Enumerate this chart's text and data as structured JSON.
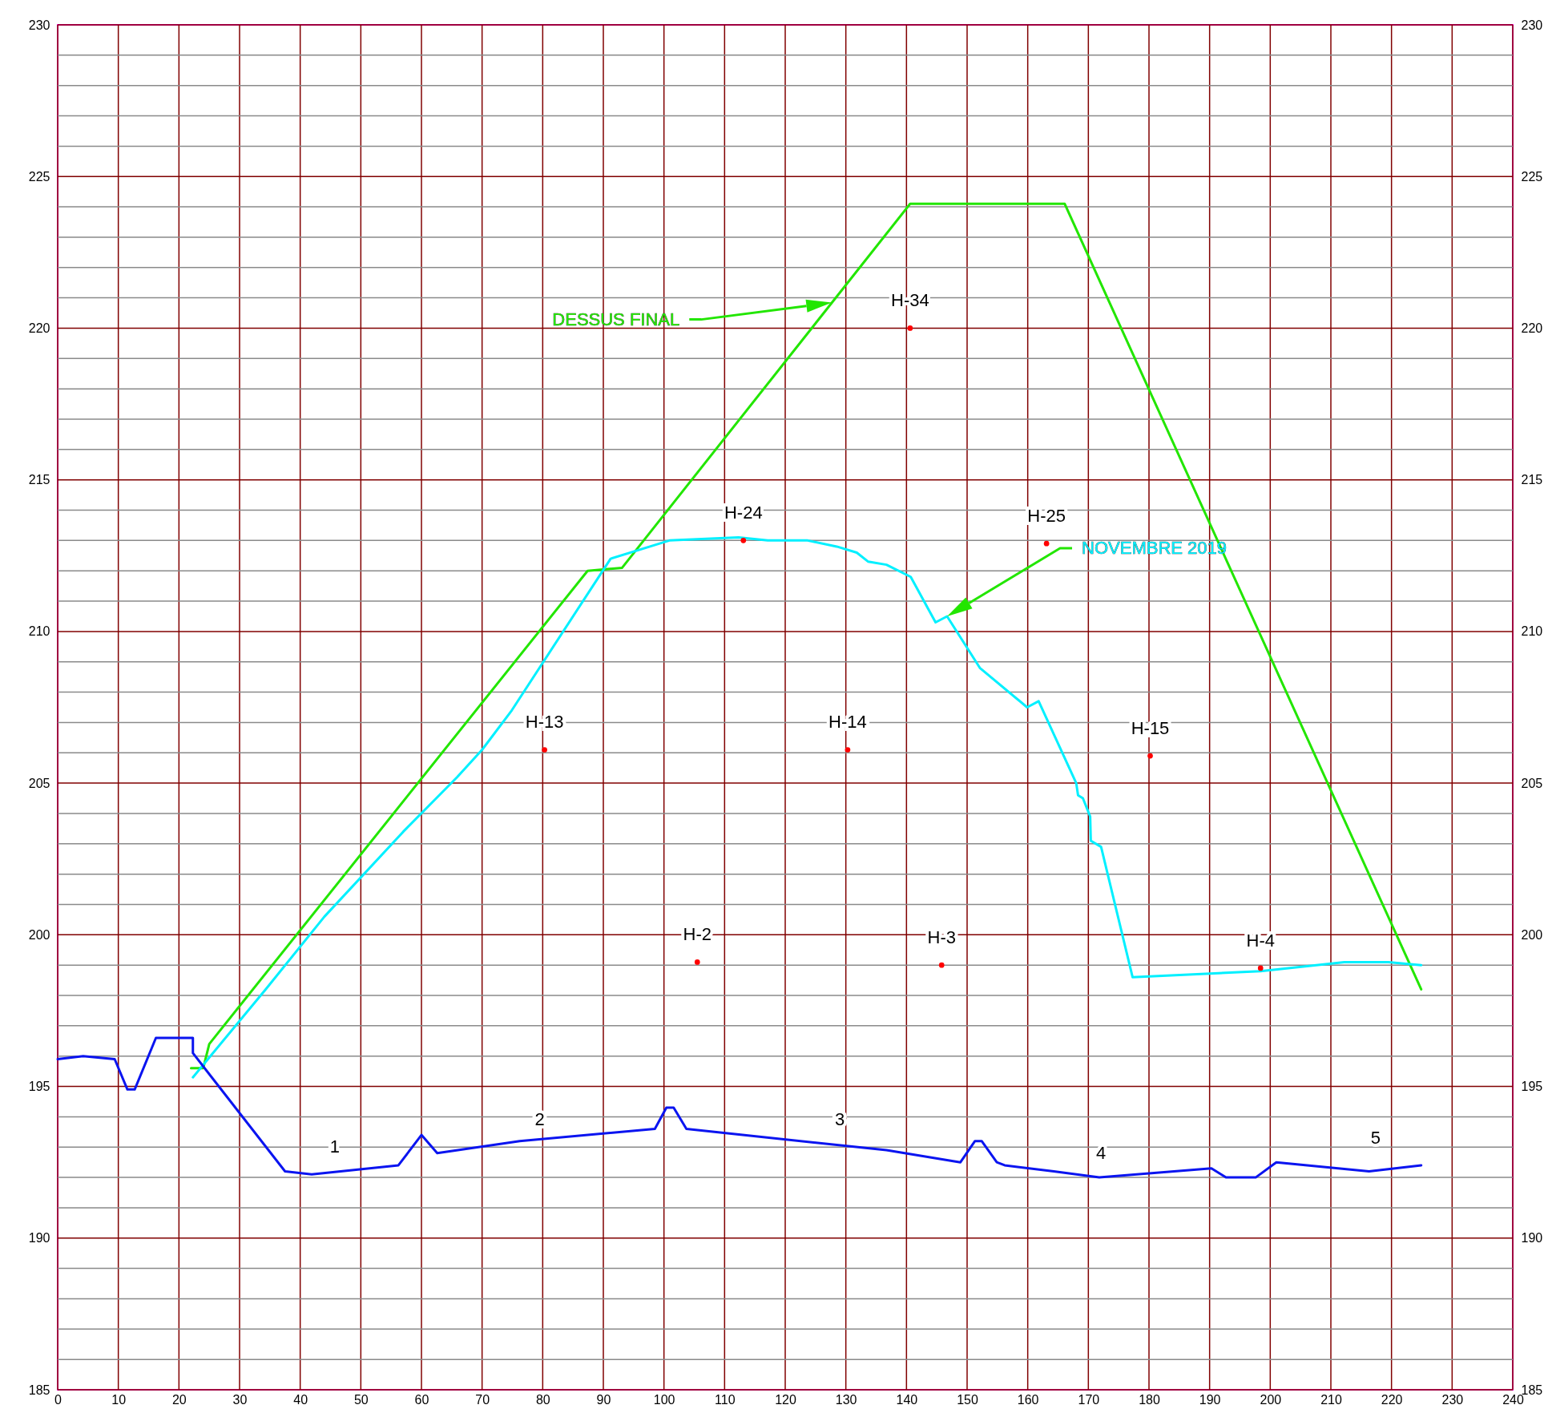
{
  "chart_data": {
    "type": "line",
    "xlim": [
      0,
      240
    ],
    "xticks": [
      0,
      10,
      20,
      30,
      40,
      50,
      60,
      70,
      80,
      90,
      100,
      110,
      120,
      130,
      140,
      150,
      160,
      170,
      180,
      190,
      200,
      210,
      220,
      230,
      240
    ],
    "ylim": [
      185,
      230
    ],
    "yticks": [
      185,
      {
        "value": 186,
        "label": null
      },
      {
        "value": 187,
        "label": null
      },
      {
        "value": 188,
        "label": null
      },
      {
        "value": 189,
        "label": null
      },
      190,
      {
        "value": 191,
        "label": null
      },
      {
        "value": 192,
        "label": null
      },
      {
        "value": 193,
        "label": null
      },
      {
        "value": 194,
        "label": null
      },
      195,
      {
        "value": 196,
        "label": null
      },
      {
        "value": 197,
        "label": null
      },
      {
        "value": 198,
        "label": null
      },
      {
        "value": 199,
        "label": null
      },
      200,
      {
        "value": 201,
        "label": null
      },
      {
        "value": 202,
        "label": null
      },
      {
        "value": 203,
        "label": null
      },
      {
        "value": 204,
        "label": null
      },
      205,
      {
        "value": 206,
        "label": null
      },
      {
        "value": 207,
        "label": null
      },
      {
        "value": 208,
        "label": null
      },
      {
        "value": 209,
        "label": null
      },
      210,
      {
        "value": 211,
        "label": null
      },
      {
        "value": 212,
        "label": null
      },
      {
        "value": 213,
        "label": null
      },
      {
        "value": 214,
        "label": null
      },
      215,
      {
        "value": 216,
        "label": null
      },
      {
        "value": 217,
        "label": null
      },
      {
        "value": 218,
        "label": null
      },
      {
        "value": 219,
        "label": null
      },
      220,
      {
        "value": 221,
        "label": null
      },
      {
        "value": 222,
        "label": null
      },
      {
        "value": 223,
        "label": null
      },
      {
        "value": 224,
        "label": null
      },
      225,
      {
        "value": 226,
        "label": null
      },
      {
        "value": 227,
        "label": null
      },
      {
        "value": 228,
        "label": null
      },
      {
        "value": 229,
        "label": null
      },
      230
    ],
    "y2lim": [
      185,
      230
    ],
    "y2ticks": [
      185,
      190,
      195,
      200,
      205,
      210,
      215,
      220,
      225,
      230
    ],
    "grid": true,
    "series": [
      {
        "name": "DESSUS FINAL",
        "type": "line",
        "color": "#22e600",
        "x": [
          22,
          24,
          25,
          87.4,
          93.1,
          140.6,
          166.1,
          224.9
        ],
        "values": [
          195.6,
          195.6,
          196.4,
          212.0,
          212.1,
          224.1,
          224.1,
          198.2
        ]
      },
      {
        "name": "NOVEMBRE 2019",
        "type": "line",
        "color": "#00f0ff",
        "x": [
          22.3,
          34.3,
          44.0,
          57.0,
          65.9,
          70.0,
          74.9,
          91.2,
          100.9,
          112.3,
          117.1,
          123.7,
          128.5,
          131.8,
          133.7,
          136.7,
          140.7,
          144.8,
          146.7,
          152.1,
          159.9,
          161.8,
          168.0,
          168.3,
          169.1,
          170.3,
          170.4,
          172.1,
          177.3,
          198.4,
          212.2,
          219.5,
          224.9
        ],
        "values": [
          195.3,
          198.2,
          200.6,
          203.4,
          205.2,
          206.1,
          207.4,
          212.4,
          213.0,
          213.1,
          213.0,
          213.0,
          212.8,
          212.6,
          212.3,
          212.2,
          211.8,
          210.3,
          210.5,
          208.8,
          207.5,
          207.7,
          205.0,
          204.6,
          204.5,
          203.9,
          203.1,
          202.9,
          198.6,
          198.8,
          199.1,
          199.1,
          199.0
        ]
      },
      {
        "type": "line",
        "color": "#0a14f0",
        "x": [
          0,
          4.2,
          9.4,
          11.5,
          12.7,
          16.2,
          22.3,
          22.3,
          37.5,
          41.9,
          56.2,
          60.0,
          62.6,
          76.2,
          98.5,
          100.4,
          101.6,
          103.7,
          136.7,
          148.9,
          151.3,
          152.4,
          154.9,
          156.2,
          164.3,
          171.8,
          190.3,
          192.7,
          197.6,
          201.0,
          216.3,
          224.9
        ],
        "values": [
          195.9,
          196.0,
          195.9,
          194.9,
          194.9,
          196.6,
          196.6,
          196.1,
          192.2,
          192.1,
          192.4,
          193.4,
          192.8,
          193.2,
          193.6,
          194.3,
          194.3,
          193.6,
          192.9,
          192.5,
          193.2,
          193.2,
          192.5,
          192.4,
          192.2,
          192.0,
          192.3,
          192.0,
          192.0,
          192.5,
          192.2,
          192.4
        ]
      },
      {
        "type": "scatter",
        "color": "#ff0000",
        "marker": "circle",
        "x": [
          140.6,
          113.1,
          163.1,
          80.3,
          130.3,
          180.2,
          105.5,
          145.8,
          198.4
        ],
        "values": [
          220.0,
          213.0,
          212.9,
          206.1,
          206.1,
          205.9,
          199.1,
          199.0,
          198.9
        ],
        "value_labels": [
          "H-34",
          "H-24",
          "H-25",
          "H-13",
          "H-14",
          "H-15",
          "H-2",
          "H-3",
          "H-4"
        ]
      }
    ],
    "annotations": [
      "1",
      "2",
      "3",
      "4",
      "5"
    ]
  }
}
